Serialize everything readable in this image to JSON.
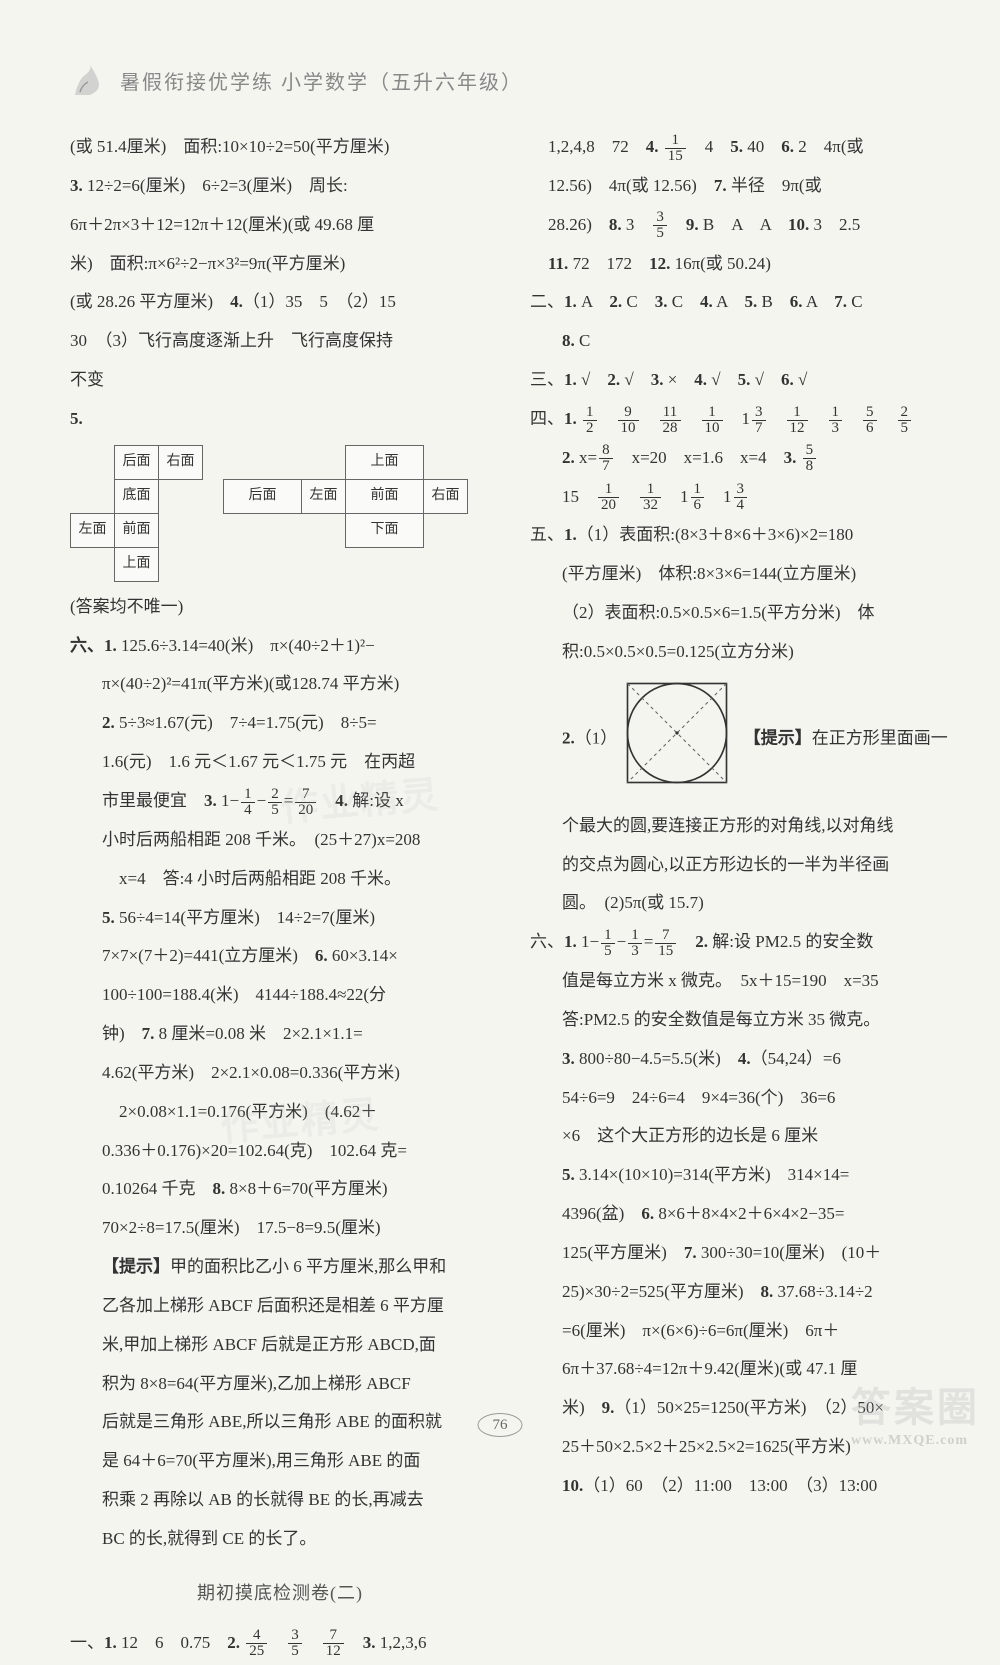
{
  "header": {
    "title": "暑假衔接优学练  小学数学（五升六年级）"
  },
  "left_column": {
    "lines": [
      "(或 51.4厘米)　面积:10×10÷2=50(平方厘米)",
      "<b>3.</b> 12÷2=6(厘米)　6÷2=3(厘米)　周长:",
      "6π＋2π×3＋12=12π＋12(厘米)(或 49.68 厘",
      "米)　面积:π×6²÷2−π×3²=9π(平方厘米)",
      "(或 28.26 平方厘米)　<b>4.</b>（1）35　5　（2）15",
      "30　（3）飞行高度逐渐上升　飞行高度保持",
      "不变",
      "<b>5.</b>"
    ],
    "diagram_left": {
      "cells": [
        [
          "",
          "后面",
          "右面",
          "",
          ""
        ],
        [
          "",
          "底面",
          "",
          "",
          ""
        ],
        [
          "左面",
          "前面",
          "",
          "",
          ""
        ],
        [
          "",
          "上面",
          "",
          "",
          ""
        ]
      ]
    },
    "diagram_right": {
      "cells": [
        [
          "",
          "",
          "上面",
          ""
        ],
        [
          "后面",
          "左面",
          "前面",
          "右面"
        ],
        [
          "",
          "",
          "下面",
          ""
        ]
      ]
    },
    "answer_note": "(答案均不唯一)",
    "section_six": {
      "label": "六、",
      "lines": [
        "<b>1.</b> 125.6÷3.14=40(米)　π×(40÷2＋1)²−",
        "π×(40÷2)²=41π(平方米)(或128.74 平方米)",
        "<b>2.</b> 5÷3≈1.67(元)　7÷4=1.75(元)　8÷5=",
        "1.6(元)　1.6 元＜1.67 元＜1.75 元　在丙超",
        "市里最便宜　<b>3.</b> 1−{frac:1/4}−{frac:2/5}={frac:7/20}　<b>4.</b> 解:设 x",
        "小时后两船相距 208 千米。　(25＋27)x=208",
        "　x=4　答:4 小时后两船相距 208 千米。",
        "<b>5.</b> 56÷4=14(平方厘米)　14÷2=7(厘米)",
        "7×7×(7＋2)=441(立方厘米)　<b>6.</b> 60×3.14×",
        "100÷100=188.4(米)　4144÷188.4≈22(分",
        "钟)　<b>7.</b> 8 厘米=0.08 米　2×2.1×1.1=",
        "4.62(平方米)　2×2.1×0.08=0.336(平方米)",
        "　2×0.08×1.1=0.176(平方米)　(4.62＋",
        "0.336＋0.176)×20=102.64(克)　102.64 克=",
        "0.10264 千克　<b>8.</b> 8×8＋6=70(平方厘米)",
        "70×2÷8=17.5(厘米)　17.5−8=9.5(厘米)",
        "<b>【提示】</b>甲的面积比乙小 6 平方厘米,那么甲和",
        "乙各加上梯形 ABCF 后面积还是相差 6 平方厘",
        "米,甲加上梯形 ABCF 后就是正方形 ABCD,面",
        "积为 8×8=64(平方厘米),乙加上梯形 ABCF",
        "后就是三角形 ABE,所以三角形 ABE 的面积就",
        "是 64＋6=70(平方厘米),用三角形 ABE 的面",
        "积乘 2 再除以 AB 的长就得 BE 的长,再减去",
        "BC 的长,就得到 CE 的长了。"
      ]
    },
    "test_title": "期初摸底检测卷(二)",
    "section_one": "一、<b>1.</b> 12　6　0.75　<b>2.</b> {frac:4/25}　{frac:3/5}　{frac:7/12}　<b>3.</b> 1,2,3,6"
  },
  "right_column": {
    "section_one_cont": [
      "1,2,4,8　72　<b>4.</b> {frac:1/15}　4　<b>5.</b> 40　<b>6.</b> 2　4π(或",
      "12.56)　4π(或 12.56)　<b>7.</b> 半径　9π(或",
      "28.26)　<b>8.</b> 3　{frac:3/5}　<b>9.</b> B　A　A　<b>10.</b> 3　2.5",
      "<b>11.</b> 72　172　<b>12.</b> 16π(或 50.24)"
    ],
    "section_two": "二、<b>1.</b> A　<b>2.</b> C　<b>3.</b> C　<b>4.</b> A　<b>5.</b> B　<b>6.</b> A　<b>7.</b> C",
    "section_two_cont": "<b>8.</b> C",
    "section_three": "三、<b>1.</b> √　<b>2.</b> √　<b>3.</b> ×　<b>4.</b> √　<b>5.</b> √　<b>6.</b> √",
    "section_four": [
      "四、<b>1.</b> {frac:1/2}　{frac:9/10}　{frac:11/28}　{frac:1/10}　1{frac:3/7}　{frac:1/12}　{frac:1/3}　{frac:5/6}　{frac:2/5}",
      "<b>2.</b> x={frac:8/7}　x=20　x=1.6　x=4　<b>3.</b> {frac:5/8}",
      "15　{frac:1/20}　{frac:1/32}　1{frac:1/6}　1{frac:3/4}"
    ],
    "section_five_lines": [
      "五、<b>1.</b>（1）表面积:(8×3＋8×6＋3×6)×2=180",
      "(平方厘米)　体积:8×3×6=144(立方厘米)",
      "（2）表面积:0.5×0.5×6=1.5(平方分米)　体",
      "积:0.5×0.5×0.5=0.125(立方分米)"
    ],
    "circle_hint": "<b>【提示】</b>在正方形里面画一",
    "circle_lines": [
      "个最大的圆,要连接正方形的对角线,以对角线",
      "的交点为圆心,以正方形边长的一半为半径画",
      "圆。　(2)5π(或 15.7)"
    ],
    "section_six": [
      "六、<b>1.</b> 1−{frac:1/5}−{frac:1/3}={frac:7/15}　<b>2.</b> 解:设 PM2.5 的安全数",
      "值是每立方米 x 微克。　5x＋15=190　x=35",
      "答:PM2.5 的安全数值是每立方米 35 微克。",
      "<b>3.</b> 800÷80−4.5=5.5(米)　<b>4.</b>（54,24）=6",
      "54÷6=9　24÷6=4　9×4=36(个)　36=6",
      "×6　这个大正方形的边长是 6 厘米",
      "<b>5.</b> 3.14×(10×10)=314(平方米)　314×14=",
      "4396(盆)　<b>6.</b> 8×6＋8×4×2＋6×4×2−35=",
      "125(平方厘米)　<b>7.</b> 300÷30=10(厘米)　(10＋",
      "25)×30÷2=525(平方厘米)　<b>8.</b> 37.68÷3.14÷2",
      "=6(厘米)　π×(6×6)÷6=6π(厘米)　6π＋",
      "6π＋37.68÷4=12π＋9.42(厘米)(或 47.1 厘",
      "米)　<b>9.</b>（1）50×25=1250(平方米)　（2）50×",
      "25＋50×2.5×2＋25×2.5×2=1625(平方米)",
      "<b>10.</b>（1）60　（2）11:00　13:00　（3）13:00"
    ]
  },
  "page_number": "76",
  "watermark_text": "答案圈",
  "watermark_url": "www.MXQE.com"
}
